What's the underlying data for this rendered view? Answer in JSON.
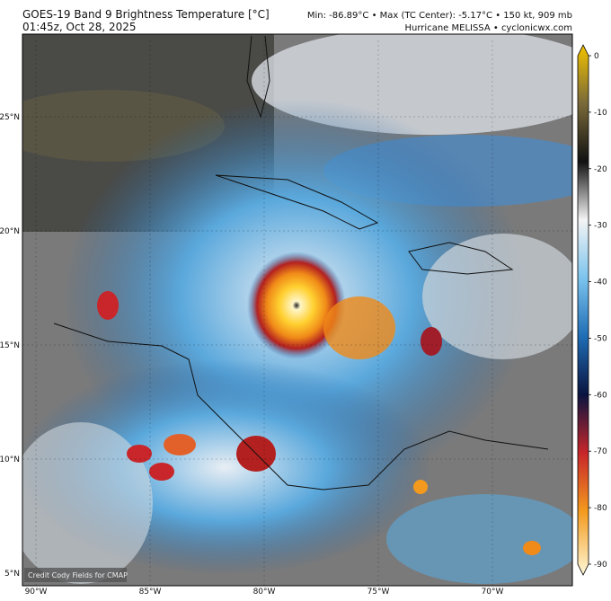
{
  "header": {
    "title": "GOES-19 Band 9 Brightness Temperature [°C]",
    "time": "01:45z, Oct 28, 2025",
    "stats": "Min: -86.89°C • Max (TC Center): -5.17°C • 150 kt, 909 mb",
    "storm": "Hurricane MELISSA • cyclonicwx.com"
  },
  "map": {
    "lat_labels": [
      "25°N",
      "20°N",
      "15°N",
      "10°N",
      "5°N"
    ],
    "lon_labels": [
      "90°W",
      "85°W",
      "80°W",
      "75°W",
      "70°W"
    ],
    "credit": "Credit Cody Fields for CMAP"
  },
  "colorbar": {
    "ticks": [
      0,
      -10,
      -20,
      -30,
      -40,
      -50,
      -60,
      -70,
      -80,
      -90
    ]
  }
}
